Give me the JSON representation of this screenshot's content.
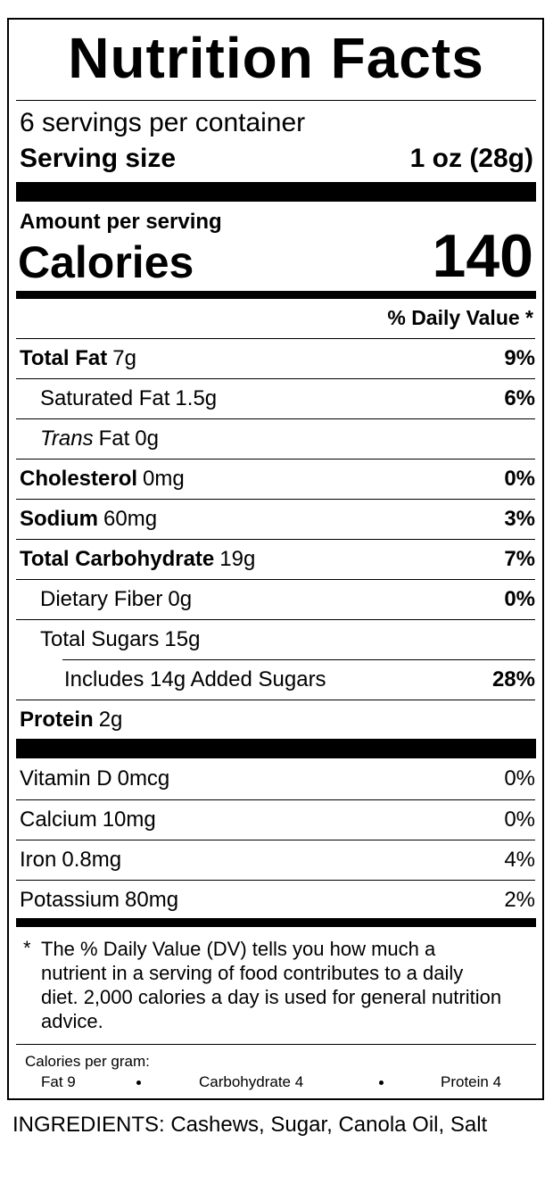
{
  "title": "Nutrition Facts",
  "servings": "6 servings per container",
  "serving_size": {
    "label": "Serving size",
    "value": "1 oz (28g)"
  },
  "amount_per_serving": "Amount per serving",
  "calories": {
    "label": "Calories",
    "value": 140
  },
  "dv_header": "% Daily Value *",
  "nutrients": [
    {
      "name": "Total Fat",
      "amount": "7g",
      "dv": "9%"
    },
    {
      "name": "Saturated Fat",
      "amount": "1.5g",
      "dv": "6%"
    },
    {
      "name_italic": "Trans",
      "name": "Fat",
      "amount": "0g"
    },
    {
      "name": "Cholesterol",
      "amount": "0mg",
      "dv": "0%"
    },
    {
      "name": "Sodium",
      "amount": "60mg",
      "dv": "3%"
    },
    {
      "name": "Total Carbohydrate",
      "amount": "19g",
      "dv": "7%"
    },
    {
      "name": "Dietary Fiber",
      "amount": "0g",
      "dv": "0%"
    },
    {
      "name": "Total Sugars",
      "amount": "15g"
    },
    {
      "name": "Includes 14g Added Sugars",
      "dv": "28%"
    },
    {
      "name": "Protein",
      "amount": "2g"
    }
  ],
  "vitamins": [
    {
      "name": "Vitamin D",
      "amount": "0mcg",
      "dv": "0%"
    },
    {
      "name": "Calcium",
      "amount": "10mg",
      "dv": "0%"
    },
    {
      "name": "Iron",
      "amount": "0.8mg",
      "dv": "4%"
    },
    {
      "name": "Potassium",
      "amount": "80mg",
      "dv": "2%"
    }
  ],
  "footnote": {
    "mark": "*",
    "text": "The % Daily Value (DV) tells you how much a nutrient in a serving of food contributes to a daily diet. 2,000 calories a day is used for general nutrition advice."
  },
  "calories_per_gram": {
    "label": "Calories per gram:",
    "items": [
      "Fat 9",
      "Carbohydrate 4",
      "Protein 4"
    ]
  },
  "ingredients": "INGREDIENTS: Cashews, Sugar, Canola Oil, Salt"
}
